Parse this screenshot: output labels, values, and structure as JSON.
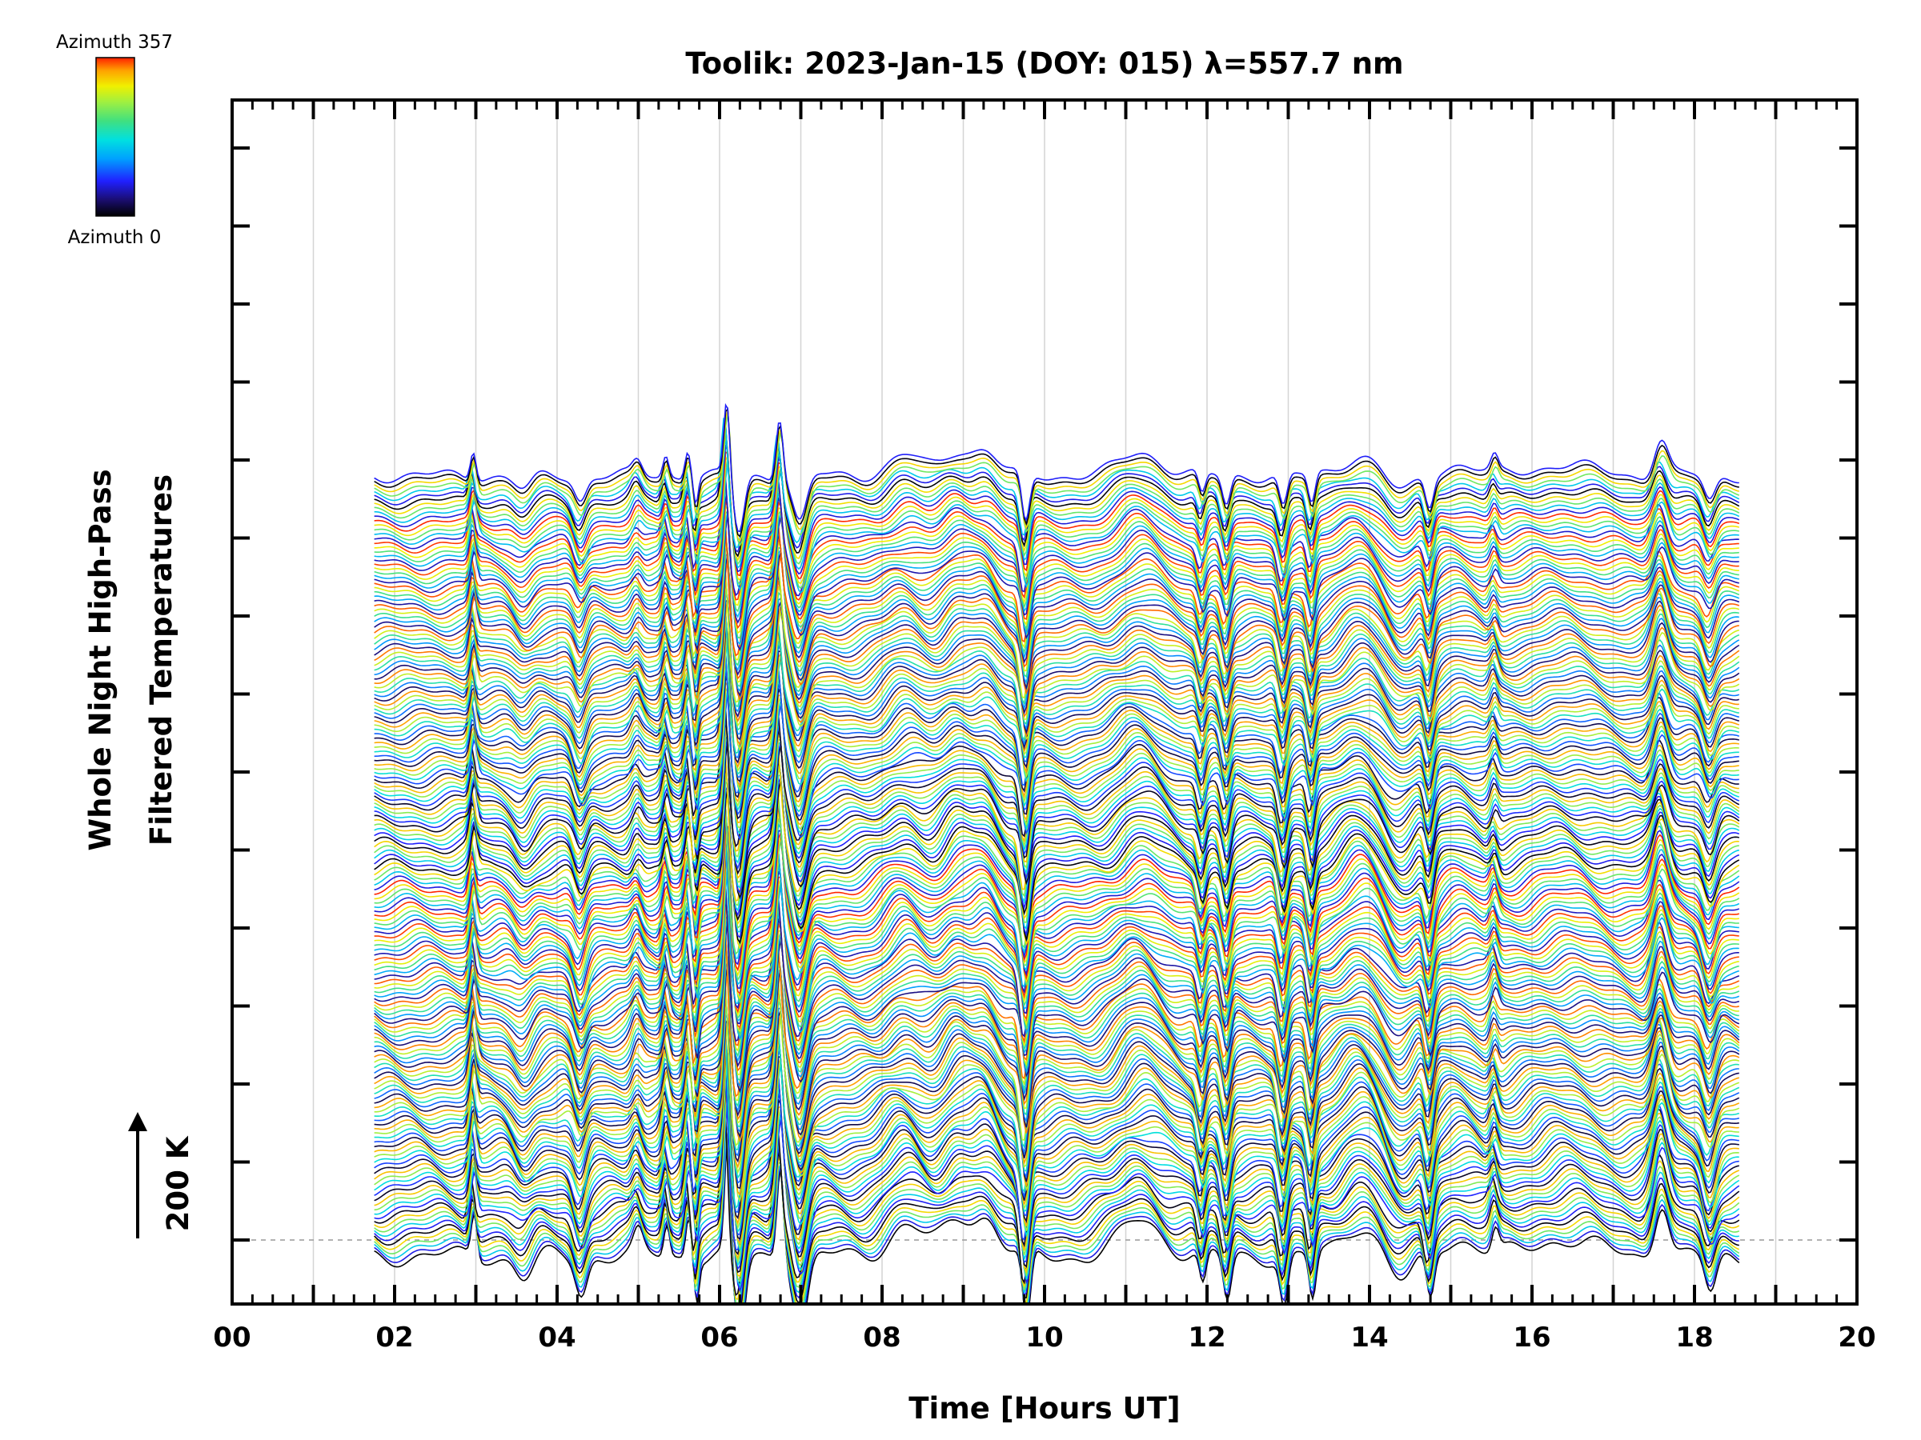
{
  "chart_data": {
    "type": "line",
    "title": "Toolik: 2023-Jan-15 (DOY: 015) λ=557.7 nm",
    "xlabel": "Time [Hours UT]",
    "ylabel_lines": [
      "Whole Night High-Pass",
      "Filtered Temperatures"
    ],
    "xlim": [
      0,
      20
    ],
    "x_ticks": [
      "00",
      "02",
      "04",
      "06",
      "08",
      "10",
      "12",
      "14",
      "16",
      "18",
      "20"
    ],
    "time_range_hours": [
      1.75,
      18.55
    ],
    "scale_label": "200 K",
    "scale_kelvin": 200,
    "n_traces": 180,
    "colorbar": {
      "top_label": "Azimuth 357",
      "bottom_label": "Azimuth 0",
      "azimuth_range": [
        0,
        357
      ],
      "colors": [
        "#000000",
        "#1a0d6e",
        "#2020ff",
        "#00a0ff",
        "#00e0e0",
        "#40e080",
        "#a0f040",
        "#f0f000",
        "#ffa000",
        "#ff2000"
      ]
    },
    "baseline_dashed": true,
    "grid": true
  }
}
